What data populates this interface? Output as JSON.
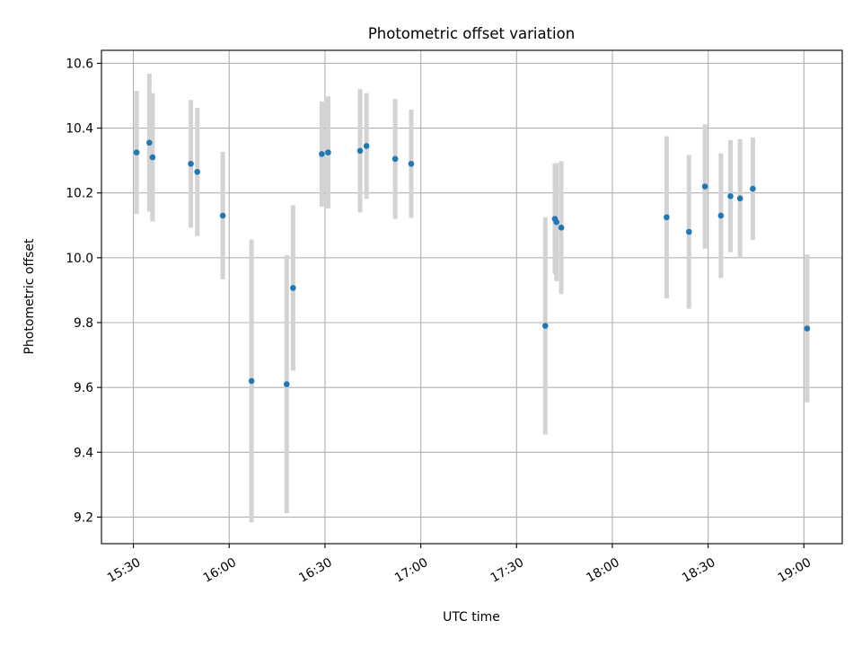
{
  "chart_data": {
    "type": "scatter",
    "title": "Photometric offset variation",
    "xlabel": "UTC time",
    "ylabel": "Photometric offset",
    "grid": true,
    "xlim": [
      "15:20",
      "19:12"
    ],
    "ylim": [
      9.118,
      10.64
    ],
    "x_ticks": [
      "15:30",
      "16:00",
      "16:30",
      "17:00",
      "17:30",
      "18:00",
      "18:30",
      "19:00"
    ],
    "y_ticks": [
      9.2,
      9.4,
      9.6,
      9.8,
      10.0,
      10.2,
      10.4,
      10.6
    ],
    "y_tick_labels": [
      "9.2",
      "9.4",
      "9.6",
      "9.8",
      "10.0",
      "10.2",
      "10.4",
      "10.6"
    ],
    "marker_color": "#1f77b4",
    "errorbar_color": "#d3d3d3",
    "series": [
      {
        "points": [
          {
            "x": "15:31",
            "y": 10.325,
            "yerr": 0.19
          },
          {
            "x": "15:35",
            "y": 10.355,
            "yerr": 0.213
          },
          {
            "x": "15:36",
            "y": 10.31,
            "yerr": 0.198
          },
          {
            "x": "15:48",
            "y": 10.29,
            "yerr": 0.197
          },
          {
            "x": "15:50",
            "y": 10.265,
            "yerr": 0.198
          },
          {
            "x": "15:58",
            "y": 10.13,
            "yerr": 0.197
          },
          {
            "x": "16:07",
            "y": 9.62,
            "yerr": 0.436
          },
          {
            "x": "16:18",
            "y": 9.61,
            "yerr": 0.398
          },
          {
            "x": "16:20",
            "y": 9.907,
            "yerr": 0.255
          },
          {
            "x": "16:29",
            "y": 10.32,
            "yerr": 0.162
          },
          {
            "x": "16:31",
            "y": 10.325,
            "yerr": 0.173
          },
          {
            "x": "16:41",
            "y": 10.33,
            "yerr": 0.19
          },
          {
            "x": "16:43",
            "y": 10.345,
            "yerr": 0.163
          },
          {
            "x": "16:52",
            "y": 10.305,
            "yerr": 0.185
          },
          {
            "x": "16:57",
            "y": 10.29,
            "yerr": 0.167
          },
          {
            "x": "17:39",
            "y": 9.79,
            "yerr": 0.335
          },
          {
            "x": "17:42",
            "y": 10.12,
            "yerr": 0.17
          },
          {
            "x": "17:42:30",
            "y": 10.11,
            "yerr": 0.182
          },
          {
            "x": "17:44",
            "y": 10.093,
            "yerr": 0.205
          },
          {
            "x": "18:17",
            "y": 10.125,
            "yerr": 0.25
          },
          {
            "x": "18:24",
            "y": 10.08,
            "yerr": 0.237
          },
          {
            "x": "18:29",
            "y": 10.22,
            "yerr": 0.192
          },
          {
            "x": "18:34",
            "y": 10.13,
            "yerr": 0.192
          },
          {
            "x": "18:37",
            "y": 10.19,
            "yerr": 0.173
          },
          {
            "x": "18:40",
            "y": 10.183,
            "yerr": 0.183
          },
          {
            "x": "18:44",
            "y": 10.213,
            "yerr": 0.158
          },
          {
            "x": "19:01",
            "y": 9.782,
            "yerr": 0.228
          }
        ]
      }
    ]
  }
}
